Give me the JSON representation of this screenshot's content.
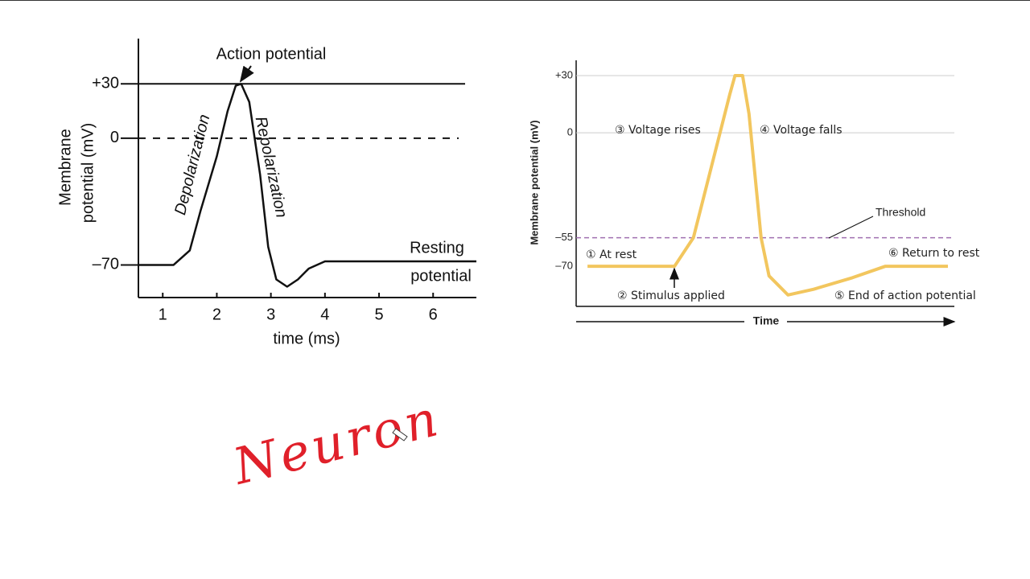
{
  "chart_data": [
    {
      "type": "line",
      "x_label": "time (ms)",
      "y_label": [
        "Membrane",
        "potential (mV)"
      ],
      "xlim": [
        0.55,
        6.8
      ],
      "xticks": [
        1,
        2,
        3,
        4,
        5,
        6
      ],
      "ylim": [
        -88,
        55
      ],
      "yticks": [
        {
          "value": 30,
          "label": "+30"
        },
        0,
        {
          "value": -70,
          "label": "–70"
        }
      ],
      "grid_style": [
        "solid",
        "dashed",
        "none"
      ],
      "annotations": {
        "peak": "Action potential",
        "rise": "Depolarization",
        "fall": "Repolarization",
        "rest": [
          "Resting",
          "potential"
        ]
      },
      "series": [
        {
          "color": "#111111",
          "x": [
            0.55,
            1.2,
            1.5,
            1.7,
            2.0,
            2.2,
            2.35,
            2.45,
            2.6,
            2.8,
            2.95,
            3.1,
            3.3,
            3.5,
            3.7,
            4.0,
            6.8
          ],
          "values": [
            -70,
            -70,
            -62,
            -40,
            -10,
            15,
            29,
            30,
            20,
            -20,
            -60,
            -78,
            -82,
            -78,
            -72,
            -68,
            -68
          ]
        }
      ]
    },
    {
      "type": "line",
      "x_label": "Time",
      "y_label": "Membrane potential (mV)",
      "xlim": [
        0,
        100
      ],
      "ylim": [
        -91,
        38
      ],
      "yticks": [
        {
          "value": 30,
          "label": "+30"
        },
        0,
        {
          "value": -55,
          "label": "–55"
        },
        {
          "value": -70,
          "label": "–70"
        }
      ],
      "grid_style": [
        "solid",
        "solid",
        "threshold",
        "none"
      ],
      "threshold_color": "#a070b0",
      "threshold_label": "Threshold",
      "steps": [
        "① At rest",
        "② Stimulus applied",
        "③ Voltage rises",
        "④ Voltage falls",
        "⑤ End of action potential",
        "⑥ Return to rest"
      ],
      "series": [
        {
          "color": "#f2c65e",
          "x": [
            3,
            26,
            31,
            40.6,
            42,
            44,
            45.7,
            48.9,
            51,
            56,
            62.8,
            73,
            81.7,
            98.3
          ],
          "values": [
            -70,
            -70,
            -55,
            20,
            30,
            30,
            10,
            -55,
            -75,
            -85,
            -82,
            -76,
            -70,
            -70
          ]
        }
      ]
    }
  ],
  "handwriting": "Neuron"
}
